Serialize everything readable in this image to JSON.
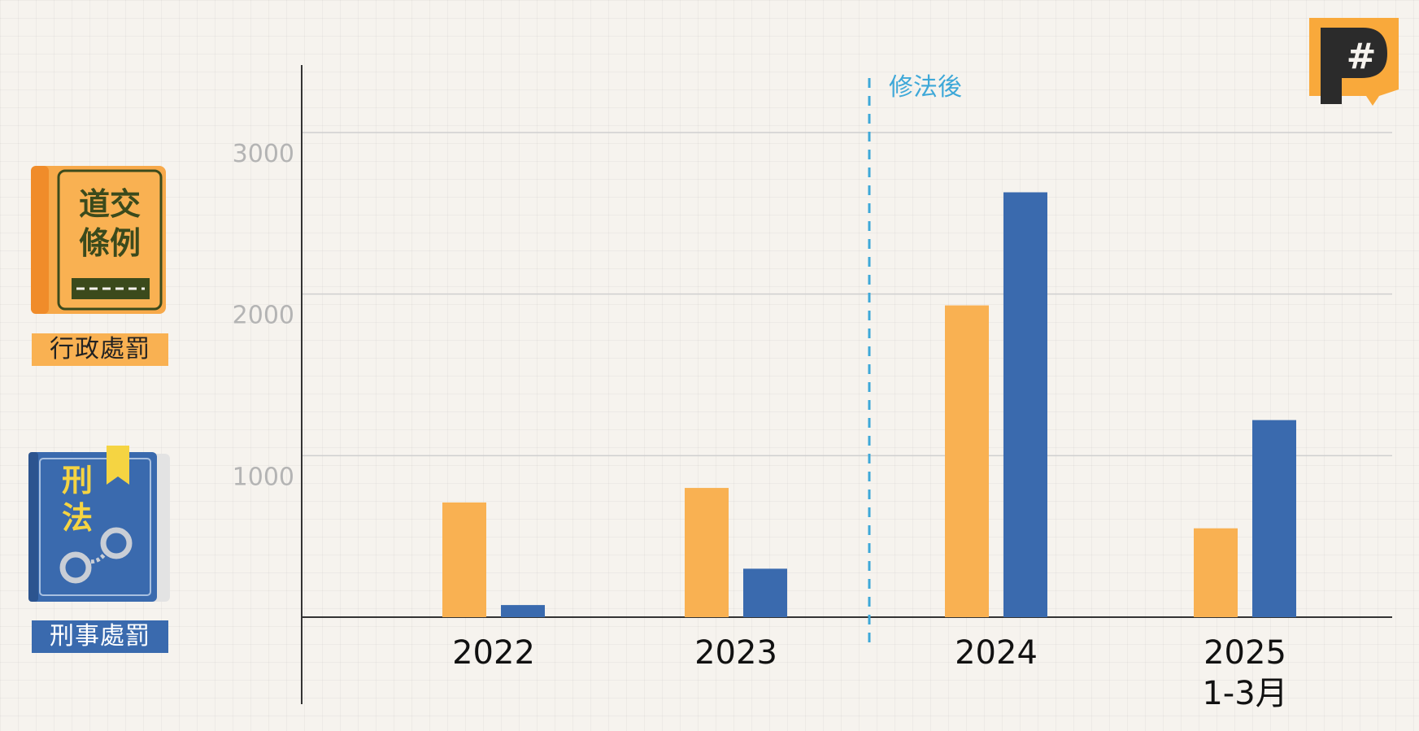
{
  "legend": {
    "admin": {
      "label": "行政處罰",
      "book_text_1": "道交",
      "book_text_2": "條例",
      "color": "#f9b152"
    },
    "criminal": {
      "label": "刑事處罰",
      "book_text_1": "刑",
      "book_text_2": "法",
      "color": "#3a6aae"
    }
  },
  "logo": {
    "symbol": "#",
    "icon": "brand-p-logo-icon",
    "color": "#f9a93b"
  },
  "chart_data": {
    "type": "bar",
    "categories": [
      "2022",
      "2023",
      "2024",
      "2025\n1-3月"
    ],
    "category_lines": [
      [
        "2022"
      ],
      [
        "2023"
      ],
      [
        "2024"
      ],
      [
        "2025",
        "1-3月"
      ]
    ],
    "series": [
      {
        "key": "admin",
        "values": [
          710,
          800,
          1930,
          550
        ],
        "color": "#f9b152"
      },
      {
        "key": "criminal",
        "values": [
          75,
          300,
          2630,
          1220
        ],
        "color": "#3a6aae"
      }
    ],
    "ylim": [
      0,
      3000
    ],
    "yticks": [
      1000,
      2000,
      3000
    ],
    "grid": true,
    "annotation": {
      "text": "修法後",
      "color": "#3ea8d8",
      "between": [
        "2023",
        "2024"
      ]
    }
  }
}
